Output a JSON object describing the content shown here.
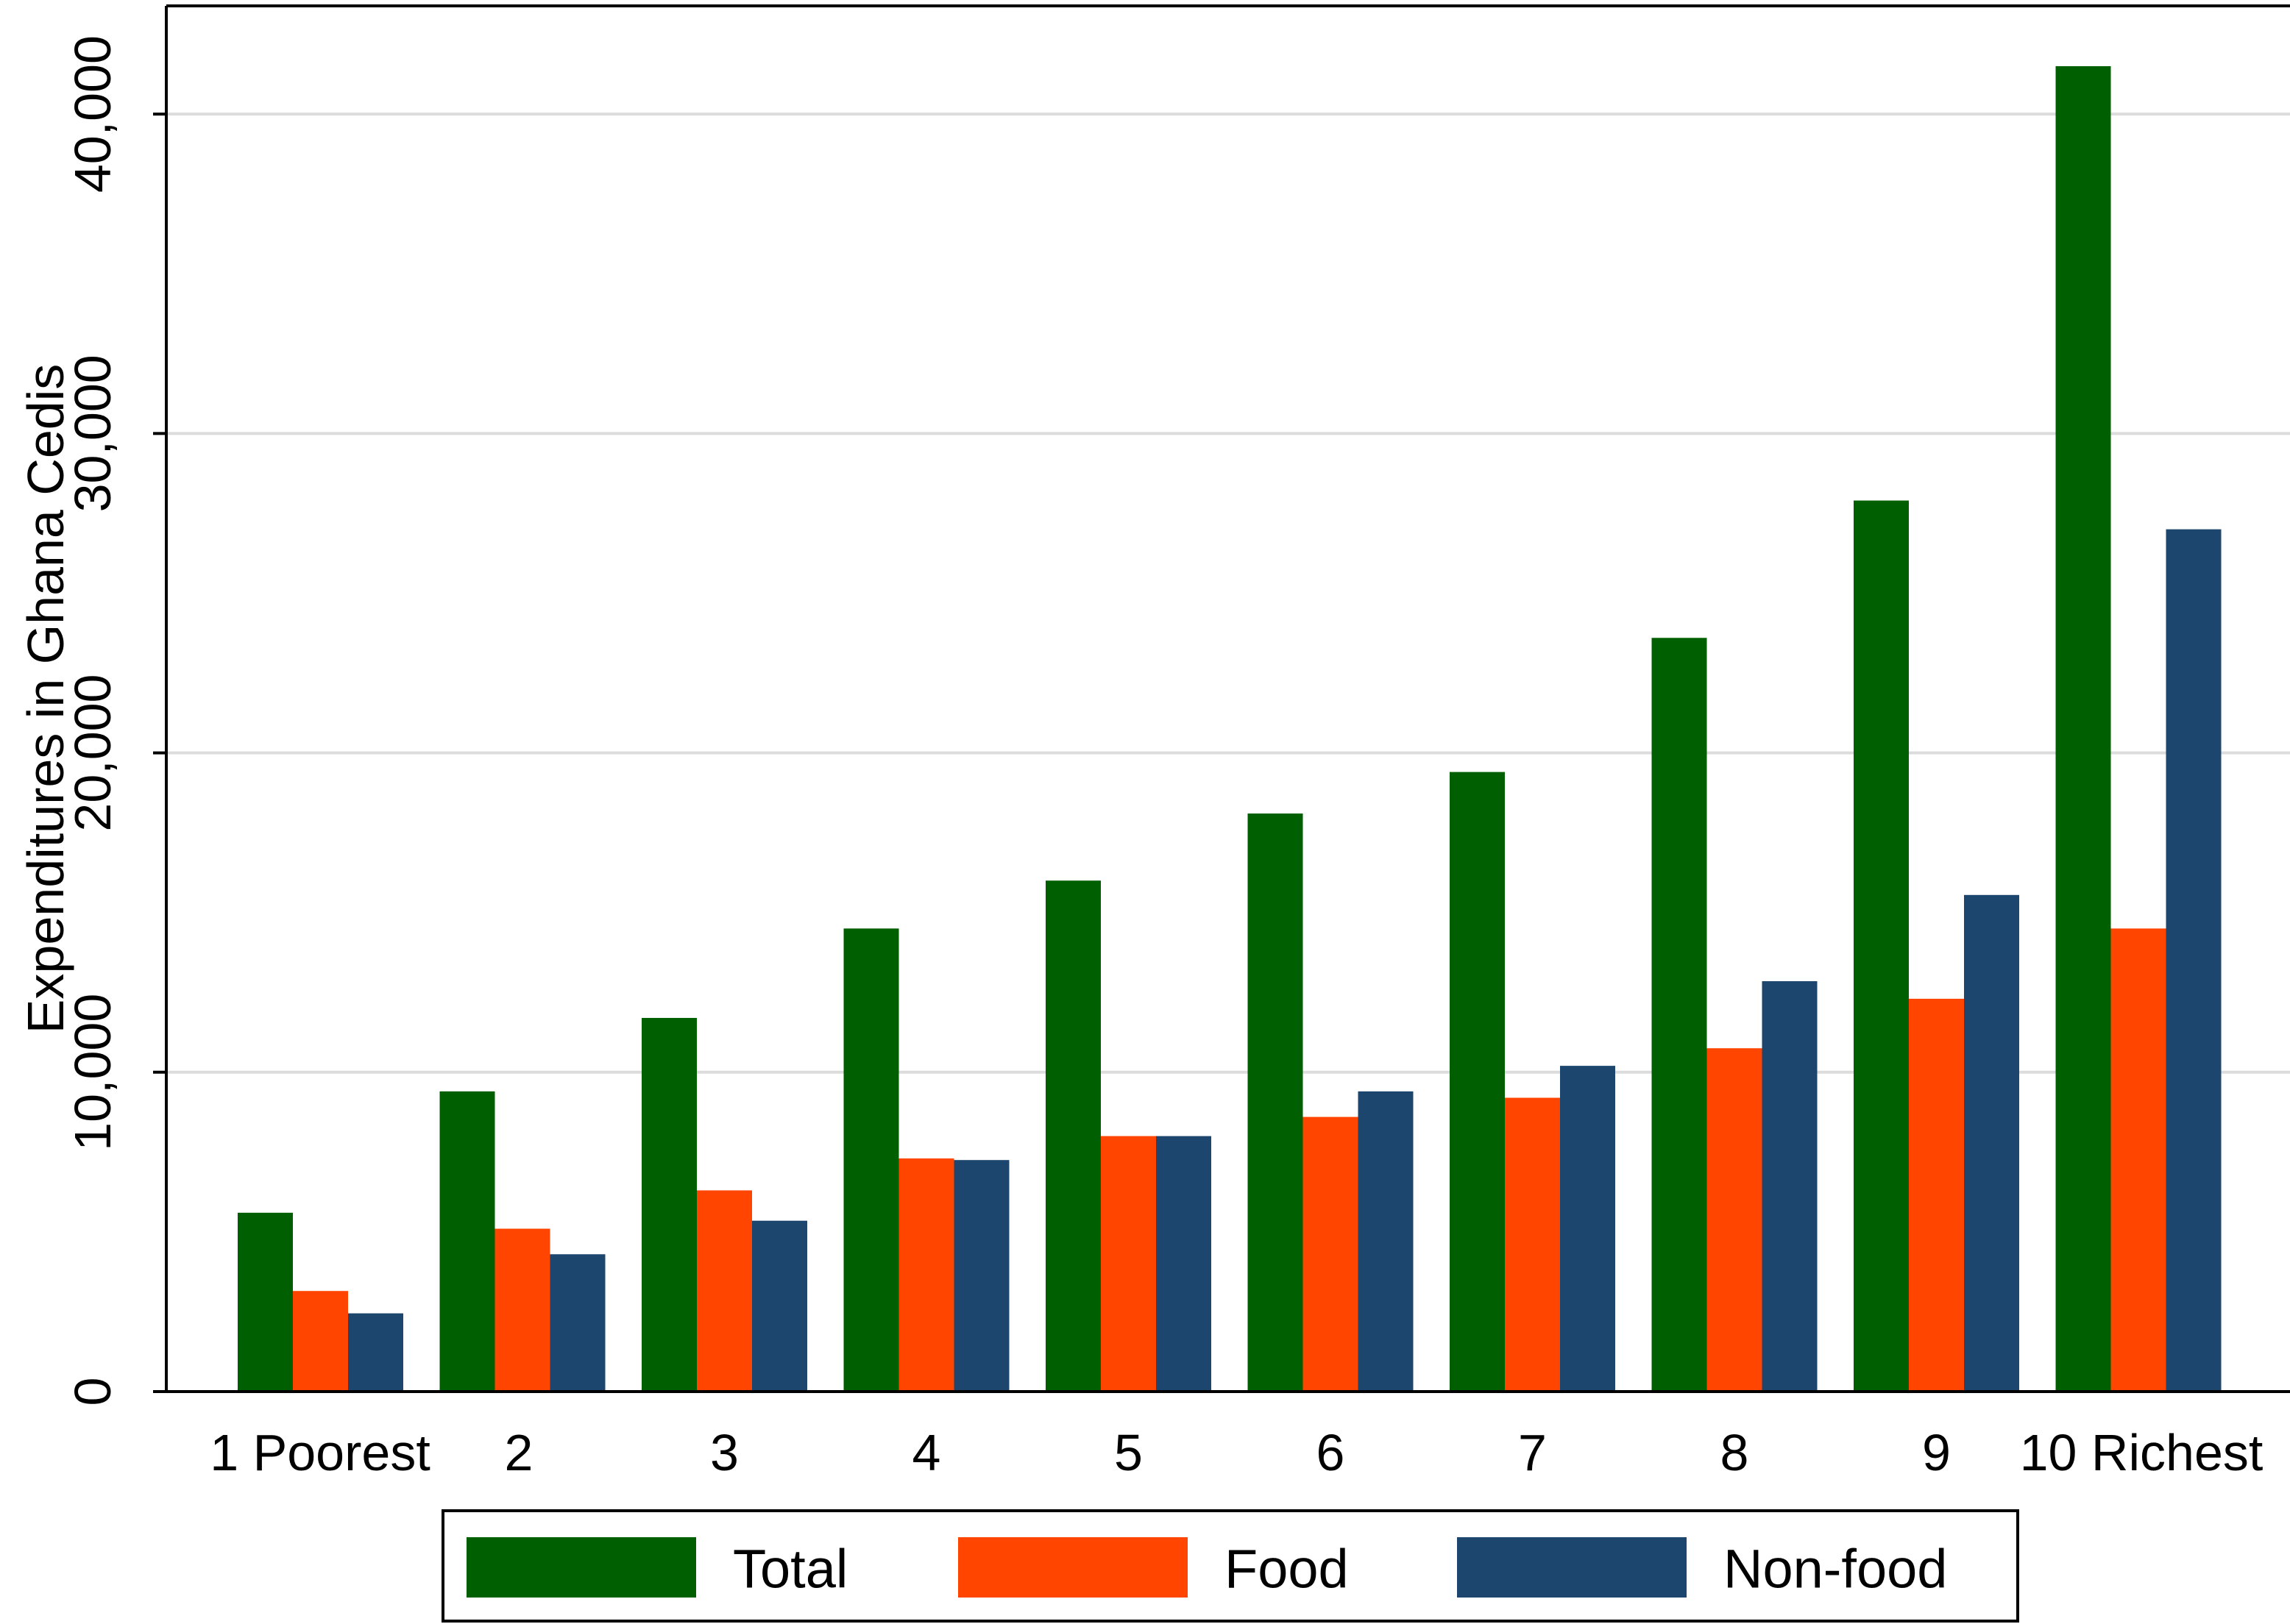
{
  "chart_data": {
    "type": "bar",
    "title": "",
    "xlabel": "",
    "ylabel": "Expenditures in Ghana Cedis",
    "ylim": [
      0,
      40000
    ],
    "yticks": [
      0,
      10000,
      20000,
      30000,
      40000
    ],
    "ytick_labels": [
      "0",
      "10,000",
      "20,000",
      "30,000",
      "40,000"
    ],
    "categories": [
      "1 Poorest",
      "2",
      "3",
      "4",
      "5",
      "6",
      "7",
      "8",
      "9",
      "10 Richest"
    ],
    "series": [
      {
        "name": "Total",
        "color": "#005f00",
        "values": [
          5600,
          9400,
          11700,
          14500,
          16000,
          18100,
          19400,
          23600,
          27900,
          41500
        ]
      },
      {
        "name": "Food",
        "color": "#ff4500",
        "values": [
          3150,
          5100,
          6300,
          7300,
          8000,
          8600,
          9200,
          10750,
          12300,
          14500
        ]
      },
      {
        "name": "Non-food",
        "color": "#1c466e",
        "values": [
          2450,
          4300,
          5350,
          7250,
          8000,
          9400,
          10200,
          12850,
          15550,
          27000
        ]
      }
    ],
    "grid": true,
    "legend_position": "bottom"
  }
}
